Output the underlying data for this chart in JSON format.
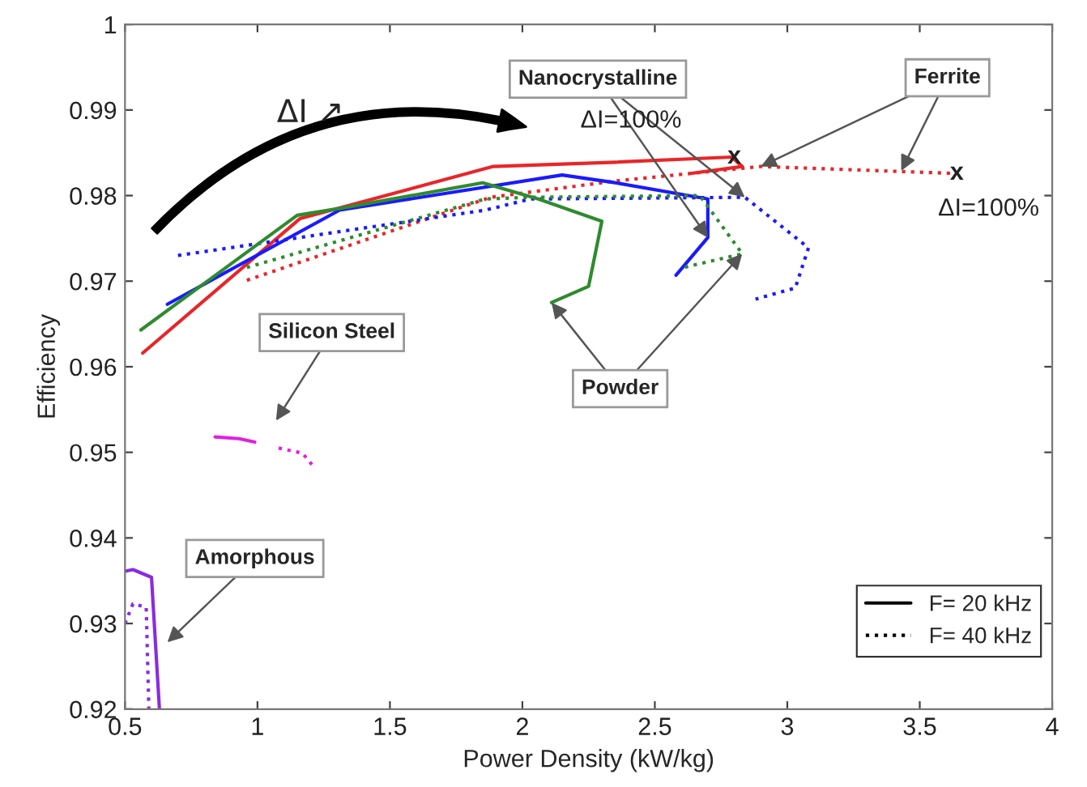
{
  "chart_data": {
    "type": "line",
    "xlabel": "Power Density (kW/kg)",
    "ylabel": "Efficiency",
    "xlim": [
      0.5,
      4
    ],
    "xticks": [
      0.5,
      1,
      1.5,
      2,
      2.5,
      3,
      3.5,
      4
    ],
    "ylim": [
      0.92,
      1
    ],
    "yticks": [
      0.92,
      0.93,
      0.94,
      0.95,
      0.96,
      0.97,
      0.98,
      0.99,
      1
    ],
    "grid": false,
    "legend": "bottom right",
    "series": [
      {
        "color": "#e8262a",
        "line_style": "solid",
        "x": [
          0.567,
          1.16,
          1.89,
          2.35,
          2.79,
          2.83,
          2.64
        ],
        "values": [
          0.9616,
          0.9773,
          0.9834,
          0.9839,
          0.9845,
          0.9834,
          0.9826
        ]
      },
      {
        "color": "#e8262a",
        "line_style": "dotted",
        "x": [
          0.96,
          1.88,
          2.35,
          2.64,
          2.9,
          3.62
        ],
        "values": [
          0.9701,
          0.9798,
          0.9817,
          0.9826,
          0.9834,
          0.9826
        ]
      },
      {
        "color": "#1a1aff",
        "line_style": "solid",
        "x": [
          0.66,
          1.31,
          2.15,
          2.35,
          2.7,
          2.7,
          2.58
        ],
        "values": [
          0.9673,
          0.9783,
          0.9824,
          0.9815,
          0.9796,
          0.9751,
          0.9707
        ]
      },
      {
        "color": "#1a1aff",
        "line_style": "dotted",
        "x": [
          0.7,
          1.86,
          2.03,
          2.84,
          3.08,
          3.03,
          2.88
        ],
        "values": [
          0.973,
          0.9783,
          0.9796,
          0.9798,
          0.9739,
          0.9692,
          0.9679
        ]
      },
      {
        "color": "#2e8b2e",
        "line_style": "solid",
        "x": [
          0.56,
          1.15,
          1.33,
          1.85,
          2.06,
          2.3,
          2.25,
          2.11
        ],
        "values": [
          0.9643,
          0.9777,
          0.9786,
          0.9815,
          0.9796,
          0.977,
          0.9694,
          0.9675
        ]
      },
      {
        "color": "#2e8b2e",
        "line_style": "dotted",
        "x": [
          0.96,
          1.86,
          2.03,
          2.67,
          2.83,
          2.61
        ],
        "values": [
          0.9716,
          0.9796,
          0.9798,
          0.98,
          0.9732,
          0.9716
        ]
      },
      {
        "color": "#e020e0",
        "line_style": "solid",
        "x": [
          0.84,
          0.93,
          0.99
        ],
        "values": [
          0.9518,
          0.9516,
          0.9512
        ]
      },
      {
        "color": "#e020e0",
        "line_style": "dotted",
        "x": [
          1.08,
          1.17,
          1.21
        ],
        "values": [
          0.9505,
          0.9499,
          0.9484
        ]
      },
      {
        "color": "#8a2be2",
        "line_style": "solid",
        "x": [
          0.5,
          0.53,
          0.6,
          0.63
        ],
        "values": [
          0.9361,
          0.9363,
          0.9354,
          0.92
        ]
      },
      {
        "color": "#8a2be2",
        "line_style": "dotted",
        "x": [
          0.5,
          0.53,
          0.58,
          0.59
        ],
        "values": [
          0.93,
          0.9323,
          0.9319,
          0.92
        ]
      },
      {
        "name": "F= 20 kHz",
        "color": "#000000",
        "line_style": "solid"
      },
      {
        "name": "F= 40 kHz",
        "color": "#000000",
        "line_style": "dotted"
      }
    ],
    "annotations": [
      "ΔI ↗",
      {
        "text": "Nanocrystalline",
        "x": 2.7,
        "y": 0.9751
      },
      {
        "text": "Ferrite",
        "x": 2.9,
        "y": 0.9834
      },
      {
        "text": "Powder",
        "x": 2.11,
        "y": 0.9675
      },
      "Silicon Steel",
      "Amorphous",
      {
        "text": "ΔI=100%",
        "x": 2.8,
        "y": 0.9845
      },
      {
        "text": "ΔI=100%",
        "x": 3.64,
        "y": 0.9826
      },
      {
        "text": "x",
        "x": 2.8,
        "y": 0.9845
      },
      {
        "text": "x",
        "x": 3.64,
        "y": 0.9826
      }
    ]
  }
}
